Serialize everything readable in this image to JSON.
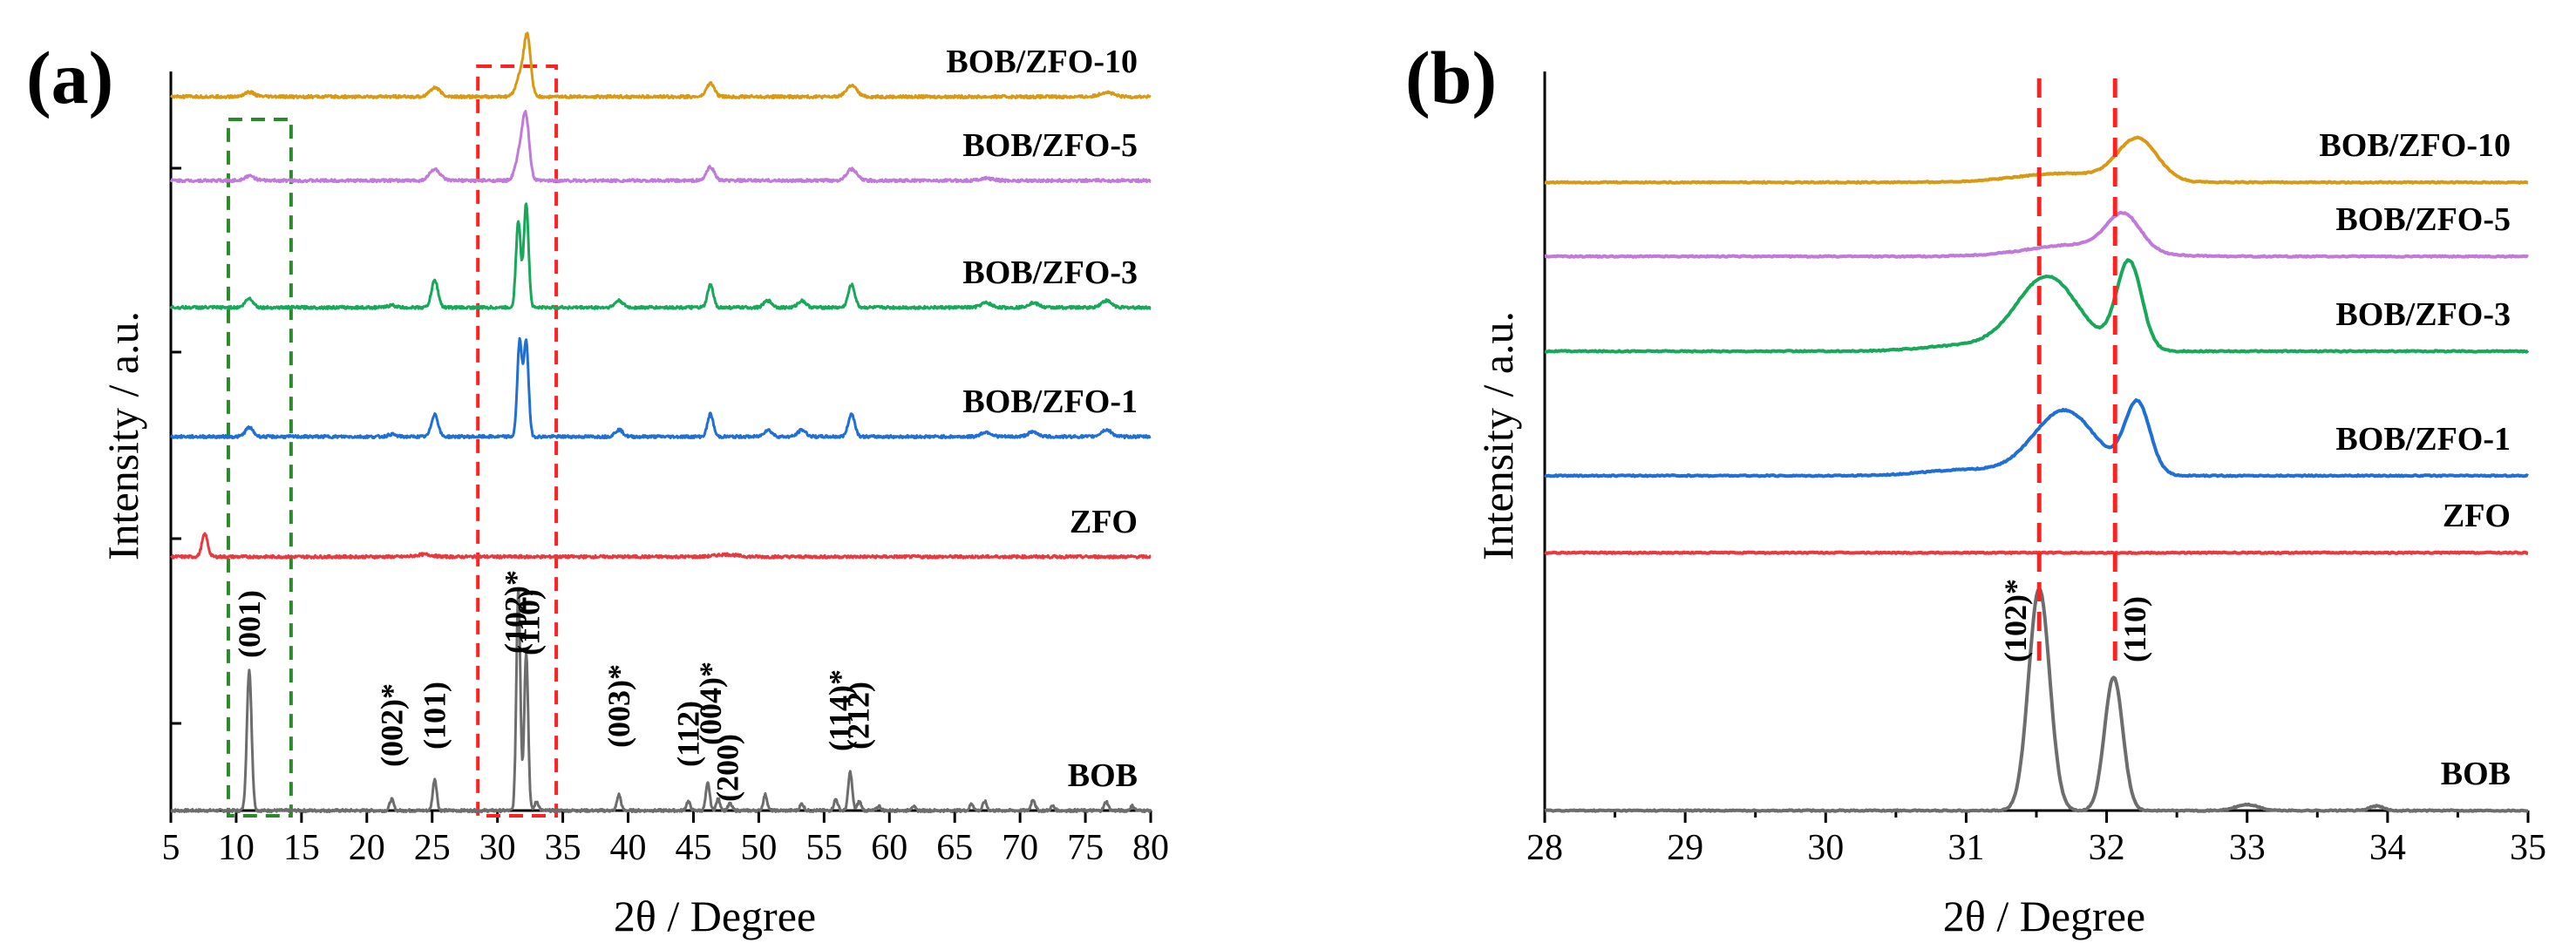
{
  "colors": {
    "BOB": "#6d6d6d",
    "ZFO": "#e8393f",
    "BOB/ZFO-1": "#1f6fd6",
    "BOB/ZFO-3": "#18a85a",
    "BOB/ZFO-5": "#c07ad9",
    "BOB/ZFO-10": "#d89a14",
    "red_box": "#ff2020",
    "green_box": "#2a8a2a"
  },
  "chart_data": [
    {
      "panel": "(a)",
      "type": "line",
      "xlabel": "2θ / Degree",
      "ylabel": "Intensity / a.u.",
      "xlim": [
        5,
        80
      ],
      "xticks": [
        5,
        10,
        15,
        20,
        25,
        30,
        35,
        40,
        45,
        50,
        55,
        60,
        65,
        70,
        75,
        80
      ],
      "series": [
        {
          "name": "BOB",
          "offset": 0.0,
          "scale": 1.0,
          "peaks": [
            [
              11.0,
              0.62,
              0.18
            ],
            [
              21.9,
              0.05,
              0.15
            ],
            [
              25.2,
              0.14,
              0.15
            ],
            [
              31.6,
              0.98,
              0.15
            ],
            [
              32.2,
              0.7,
              0.15
            ],
            [
              33.0,
              0.04,
              0.15
            ],
            [
              39.3,
              0.07,
              0.15
            ],
            [
              44.6,
              0.04,
              0.15
            ],
            [
              46.1,
              0.12,
              0.15
            ],
            [
              46.9,
              0.05,
              0.15
            ],
            [
              47.8,
              0.03,
              0.15
            ],
            [
              50.5,
              0.07,
              0.15
            ],
            [
              53.3,
              0.03,
              0.15
            ],
            [
              55.9,
              0.05,
              0.15
            ],
            [
              57.0,
              0.17,
              0.15
            ],
            [
              57.7,
              0.04,
              0.15
            ],
            [
              59.2,
              0.02,
              0.15
            ],
            [
              61.8,
              0.02,
              0.15
            ],
            [
              66.3,
              0.03,
              0.15
            ],
            [
              67.3,
              0.04,
              0.15
            ],
            [
              71.0,
              0.05,
              0.15
            ],
            [
              72.5,
              0.02,
              0.15
            ],
            [
              76.6,
              0.04,
              0.15
            ],
            [
              78.6,
              0.02,
              0.15
            ]
          ]
        },
        {
          "name": "ZFO",
          "offset": 1.12,
          "scale": 1.0,
          "peaks": [
            [
              7.6,
              0.1,
              0.22
            ],
            [
              24.4,
              0.01,
              0.6
            ],
            [
              47.5,
              0.01,
              0.8
            ]
          ]
        },
        {
          "name": "BOB/ZFO-1",
          "offset": 1.65,
          "scale": 1.0,
          "peaks": [
            [
              11.0,
              0.04,
              0.3
            ],
            [
              21.9,
              0.01,
              0.3
            ],
            [
              25.2,
              0.1,
              0.25
            ],
            [
              31.7,
              0.42,
              0.18
            ],
            [
              32.2,
              0.42,
              0.18
            ],
            [
              39.3,
              0.03,
              0.3
            ],
            [
              46.3,
              0.1,
              0.22
            ],
            [
              50.7,
              0.03,
              0.3
            ],
            [
              53.3,
              0.03,
              0.3
            ],
            [
              57.1,
              0.1,
              0.25
            ],
            [
              67.4,
              0.02,
              0.4
            ],
            [
              71.0,
              0.02,
              0.4
            ],
            [
              76.6,
              0.03,
              0.4
            ]
          ]
        },
        {
          "name": "BOB/ZFO-3",
          "offset": 2.22,
          "scale": 1.0,
          "peaks": [
            [
              11.0,
              0.04,
              0.3
            ],
            [
              21.9,
              0.01,
              0.3
            ],
            [
              25.2,
              0.12,
              0.25
            ],
            [
              31.6,
              0.38,
              0.18
            ],
            [
              32.2,
              0.46,
              0.18
            ],
            [
              39.3,
              0.03,
              0.3
            ],
            [
              46.3,
              0.1,
              0.22
            ],
            [
              50.7,
              0.03,
              0.3
            ],
            [
              53.3,
              0.03,
              0.3
            ],
            [
              57.1,
              0.1,
              0.25
            ],
            [
              67.4,
              0.02,
              0.4
            ],
            [
              71.0,
              0.02,
              0.4
            ],
            [
              76.6,
              0.03,
              0.4
            ]
          ]
        },
        {
          "name": "BOB/ZFO-5",
          "offset": 2.78,
          "scale": 1.0,
          "peaks": [
            [
              11.0,
              0.02,
              0.4
            ],
            [
              25.2,
              0.05,
              0.4
            ],
            [
              31.8,
              0.14,
              0.35
            ],
            [
              32.2,
              0.22,
              0.25
            ],
            [
              46.3,
              0.06,
              0.3
            ],
            [
              57.1,
              0.05,
              0.4
            ],
            [
              67.4,
              0.01,
              0.5
            ]
          ]
        },
        {
          "name": "BOB/ZFO-10",
          "offset": 3.15,
          "scale": 1.0,
          "peaks": [
            [
              11.0,
              0.02,
              0.4
            ],
            [
              25.2,
              0.04,
              0.4
            ],
            [
              31.8,
              0.1,
              0.35
            ],
            [
              32.3,
              0.24,
              0.25
            ],
            [
              46.3,
              0.06,
              0.3
            ],
            [
              57.1,
              0.05,
              0.4
            ],
            [
              76.6,
              0.02,
              0.5
            ]
          ]
        }
      ],
      "annotations": [
        {
          "text": "(001)",
          "x": 11.0
        },
        {
          "text": "(002)*",
          "x": 21.9
        },
        {
          "text": "(101)",
          "x": 25.2
        },
        {
          "text": "(102)*",
          "x": 31.4
        },
        {
          "text": "(110)",
          "x": 32.4
        },
        {
          "text": "(003)*",
          "x": 39.3
        },
        {
          "text": "(112)",
          "x": 44.6
        },
        {
          "text": "(004)*",
          "x": 46.3
        },
        {
          "text": "(200)",
          "x": 47.6
        },
        {
          "text": "(114)*",
          "x": 56.2
        },
        {
          "text": "(212)",
          "x": 57.6
        }
      ],
      "boxes": [
        {
          "color": "green",
          "x": [
            9.4,
            14.2
          ]
        },
        {
          "color": "red",
          "x": [
            28.5,
            34.5
          ]
        }
      ]
    },
    {
      "panel": "(b)",
      "type": "line",
      "xlabel": "2θ / Degree",
      "ylabel": "Intensity / a.u.",
      "xlim": [
        28,
        35
      ],
      "xticks": [
        28,
        29,
        30,
        31,
        32,
        33,
        34,
        35
      ],
      "series": [
        {
          "name": "BOB",
          "offset": 0.0,
          "scale": 1.0,
          "peaks": [
            [
              31.52,
              0.75,
              0.075
            ],
            [
              32.05,
              0.45,
              0.065
            ],
            [
              33.0,
              0.02,
              0.08
            ],
            [
              33.92,
              0.015,
              0.05
            ]
          ]
        },
        {
          "name": "ZFO",
          "offset": 0.87,
          "scale": 1.0,
          "peaks": []
        },
        {
          "name": "BOB/ZFO-1",
          "offset": 1.13,
          "scale": 1.0,
          "peaks": [
            [
              31.7,
              0.22,
              0.22
            ],
            [
              32.22,
              0.24,
              0.09
            ],
            [
              31.0,
              0.02,
              0.3
            ]
          ]
        },
        {
          "name": "BOB/ZFO-3",
          "offset": 1.55,
          "scale": 1.0,
          "peaks": [
            [
              31.58,
              0.25,
              0.22
            ],
            [
              32.16,
              0.3,
              0.09
            ],
            [
              31.0,
              0.02,
              0.3
            ]
          ]
        },
        {
          "name": "BOB/ZFO-5",
          "offset": 1.87,
          "scale": 1.0,
          "peaks": [
            [
              31.8,
              0.04,
              0.35
            ],
            [
              32.12,
              0.12,
              0.12
            ]
          ]
        },
        {
          "name": "BOB/ZFO-10",
          "offset": 2.12,
          "scale": 1.0,
          "peaks": [
            [
              31.7,
              0.03,
              0.35
            ],
            [
              32.22,
              0.14,
              0.14
            ]
          ]
        }
      ],
      "annotations": [
        {
          "text": "(102)*",
          "x": 31.35
        },
        {
          "text": "(110)",
          "x": 32.2
        }
      ],
      "vlines": [
        31.52,
        32.06
      ]
    }
  ]
}
